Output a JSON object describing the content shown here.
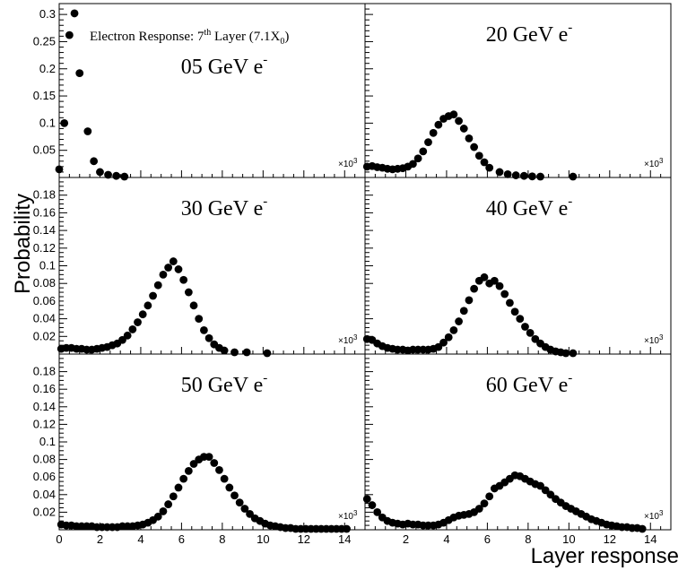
{
  "figure": {
    "ylabel": "Probability",
    "xlabel": "Layer response",
    "header_note": {
      "prefix": "Electron Response: 7",
      "sup": "th",
      "middle": " Layer (7.1X",
      "sub": "0",
      "suffix": ")"
    },
    "x_multiplier": {
      "base": "×10",
      "exp": "3"
    }
  },
  "chart_data": [
    {
      "type": "scatter",
      "label": "05 GeV e",
      "label_sup": "-",
      "xlim": [
        0,
        15
      ],
      "ylim": [
        0,
        0.32
      ],
      "yticks": [
        0.05,
        0.1,
        0.15,
        0.2,
        0.25,
        0.3
      ],
      "yticklabels": [
        "0.05",
        "0.1",
        "0.15",
        "0.2",
        "0.25",
        "0.3"
      ],
      "x": [
        0.0,
        0.25,
        0.5,
        0.75,
        1.0,
        1.4,
        1.7,
        2.0,
        2.4,
        2.8,
        3.2
      ],
      "y": [
        0.015,
        0.1,
        0.262,
        0.302,
        0.192,
        0.085,
        0.03,
        0.01,
        0.005,
        0.003,
        0.001
      ]
    },
    {
      "type": "scatter",
      "label": "20 GeV e",
      "label_sup": "-",
      "xlim": [
        0,
        15
      ],
      "ylim": [
        0,
        0.32
      ],
      "x": [
        0.1,
        0.35,
        0.6,
        0.85,
        1.1,
        1.35,
        1.6,
        1.85,
        2.1,
        2.35,
        2.6,
        2.85,
        3.1,
        3.35,
        3.6,
        3.85,
        4.1,
        4.35,
        4.6,
        4.85,
        5.1,
        5.35,
        5.6,
        5.85,
        6.1,
        6.6,
        7.0,
        7.4,
        7.8,
        8.2,
        8.6,
        10.2
      ],
      "y": [
        0.02,
        0.021,
        0.019,
        0.018,
        0.016,
        0.015,
        0.016,
        0.017,
        0.02,
        0.025,
        0.035,
        0.048,
        0.065,
        0.082,
        0.097,
        0.108,
        0.113,
        0.116,
        0.104,
        0.09,
        0.072,
        0.056,
        0.04,
        0.028,
        0.018,
        0.01,
        0.006,
        0.004,
        0.003,
        0.002,
        0.001,
        0.001
      ]
    },
    {
      "type": "scatter",
      "label": "30 GeV e",
      "label_sup": "-",
      "xlim": [
        0,
        15
      ],
      "ylim": [
        0,
        0.2
      ],
      "yticks": [
        0.02,
        0.04,
        0.06,
        0.08,
        0.1,
        0.12,
        0.14,
        0.16,
        0.18
      ],
      "yticklabels": [
        "0.02",
        "0.04",
        "0.06",
        "0.08",
        "0.1",
        "0.12",
        "0.14",
        "0.16",
        "0.18"
      ],
      "x": [
        0.1,
        0.35,
        0.6,
        0.85,
        1.1,
        1.35,
        1.6,
        1.85,
        2.1,
        2.35,
        2.6,
        2.85,
        3.1,
        3.35,
        3.6,
        3.85,
        4.1,
        4.35,
        4.6,
        4.85,
        5.1,
        5.35,
        5.6,
        5.85,
        6.1,
        6.35,
        6.6,
        6.85,
        7.1,
        7.35,
        7.6,
        7.85,
        8.1,
        8.6,
        9.2,
        10.2
      ],
      "y": [
        0.006,
        0.007,
        0.007,
        0.006,
        0.006,
        0.005,
        0.005,
        0.006,
        0.007,
        0.008,
        0.01,
        0.012,
        0.016,
        0.021,
        0.028,
        0.036,
        0.045,
        0.055,
        0.066,
        0.078,
        0.09,
        0.098,
        0.105,
        0.096,
        0.084,
        0.07,
        0.055,
        0.04,
        0.027,
        0.018,
        0.011,
        0.007,
        0.004,
        0.002,
        0.002,
        0.001
      ]
    },
    {
      "type": "scatter",
      "label": "40 GeV e",
      "label_sup": "-",
      "xlim": [
        0,
        15
      ],
      "ylim": [
        0,
        0.2
      ],
      "x": [
        0.1,
        0.35,
        0.6,
        0.85,
        1.1,
        1.35,
        1.6,
        1.85,
        2.1,
        2.35,
        2.6,
        2.85,
        3.1,
        3.35,
        3.6,
        3.85,
        4.1,
        4.35,
        4.6,
        4.85,
        5.1,
        5.35,
        5.6,
        5.85,
        6.1,
        6.35,
        6.6,
        6.85,
        7.1,
        7.35,
        7.6,
        7.85,
        8.1,
        8.35,
        8.6,
        8.85,
        9.1,
        9.35,
        9.6,
        9.85,
        10.2
      ],
      "y": [
        0.017,
        0.016,
        0.012,
        0.009,
        0.007,
        0.006,
        0.005,
        0.005,
        0.004,
        0.005,
        0.005,
        0.005,
        0.005,
        0.006,
        0.008,
        0.013,
        0.019,
        0.027,
        0.037,
        0.049,
        0.061,
        0.074,
        0.083,
        0.087,
        0.08,
        0.083,
        0.077,
        0.068,
        0.058,
        0.048,
        0.04,
        0.031,
        0.024,
        0.017,
        0.012,
        0.008,
        0.005,
        0.003,
        0.002,
        0.001,
        0.001
      ]
    },
    {
      "type": "scatter",
      "label": "50 GeV e",
      "label_sup": "-",
      "xlim": [
        0,
        15
      ],
      "ylim": [
        0,
        0.2
      ],
      "yticks": [
        0.02,
        0.04,
        0.06,
        0.08,
        0.1,
        0.12,
        0.14,
        0.16,
        0.18
      ],
      "yticklabels": [
        "0.02",
        "0.04",
        "0.06",
        "0.08",
        "0.1",
        "0.12",
        "0.14",
        "0.16",
        "0.18"
      ],
      "xticks": [
        0,
        2,
        4,
        6,
        8,
        10,
        12,
        14
      ],
      "xticklabels": [
        "0",
        "2",
        "4",
        "6",
        "8",
        "10",
        "12",
        "14"
      ],
      "x": [
        0.1,
        0.35,
        0.6,
        0.85,
        1.1,
        1.35,
        1.6,
        1.85,
        2.1,
        2.35,
        2.6,
        2.85,
        3.1,
        3.35,
        3.6,
        3.85,
        4.1,
        4.35,
        4.6,
        4.85,
        5.1,
        5.35,
        5.6,
        5.85,
        6.1,
        6.35,
        6.6,
        6.85,
        7.1,
        7.35,
        7.6,
        7.85,
        8.1,
        8.35,
        8.6,
        8.85,
        9.1,
        9.35,
        9.6,
        9.85,
        10.1,
        10.35,
        10.6,
        10.85,
        11.1,
        11.35,
        11.6,
        11.85,
        12.1,
        12.35,
        12.6,
        12.85,
        13.1,
        13.35,
        13.6,
        13.85,
        14.1
      ],
      "y": [
        0.006,
        0.005,
        0.005,
        0.004,
        0.004,
        0.004,
        0.004,
        0.003,
        0.003,
        0.003,
        0.003,
        0.003,
        0.004,
        0.004,
        0.004,
        0.005,
        0.006,
        0.008,
        0.011,
        0.015,
        0.021,
        0.029,
        0.038,
        0.048,
        0.058,
        0.067,
        0.075,
        0.08,
        0.083,
        0.083,
        0.076,
        0.068,
        0.058,
        0.048,
        0.039,
        0.031,
        0.024,
        0.018,
        0.013,
        0.01,
        0.007,
        0.005,
        0.004,
        0.003,
        0.002,
        0.002,
        0.001,
        0.001,
        0.001,
        0.001,
        0.001,
        0.001,
        0.001,
        0.001,
        0.001,
        0.001,
        0.001
      ]
    },
    {
      "type": "scatter",
      "label": "60 GeV e",
      "label_sup": "-",
      "xlim": [
        0,
        15
      ],
      "ylim": [
        0,
        0.2
      ],
      "xticks": [
        0,
        2,
        4,
        6,
        8,
        10,
        12,
        14
      ],
      "xticklabels": [
        "",
        "2",
        "4",
        "6",
        "8",
        "10",
        "12",
        "14"
      ],
      "x": [
        0.1,
        0.35,
        0.6,
        0.85,
        1.1,
        1.35,
        1.6,
        1.85,
        2.1,
        2.35,
        2.6,
        2.85,
        3.1,
        3.35,
        3.6,
        3.85,
        4.1,
        4.35,
        4.6,
        4.85,
        5.1,
        5.35,
        5.6,
        5.85,
        6.1,
        6.35,
        6.6,
        6.85,
        7.1,
        7.35,
        7.6,
        7.85,
        8.1,
        8.35,
        8.6,
        8.85,
        9.1,
        9.35,
        9.6,
        9.85,
        10.1,
        10.35,
        10.6,
        10.85,
        11.1,
        11.35,
        11.6,
        11.85,
        12.1,
        12.35,
        12.6,
        12.85,
        13.1,
        13.35,
        13.6
      ],
      "y": [
        0.035,
        0.028,
        0.02,
        0.014,
        0.01,
        0.008,
        0.007,
        0.006,
        0.007,
        0.006,
        0.006,
        0.005,
        0.005,
        0.005,
        0.006,
        0.008,
        0.011,
        0.014,
        0.016,
        0.017,
        0.018,
        0.02,
        0.024,
        0.03,
        0.038,
        0.047,
        0.05,
        0.054,
        0.058,
        0.062,
        0.061,
        0.058,
        0.055,
        0.052,
        0.05,
        0.045,
        0.04,
        0.035,
        0.031,
        0.027,
        0.024,
        0.021,
        0.018,
        0.015,
        0.012,
        0.01,
        0.008,
        0.006,
        0.005,
        0.004,
        0.003,
        0.003,
        0.002,
        0.002,
        0.001
      ]
    }
  ]
}
